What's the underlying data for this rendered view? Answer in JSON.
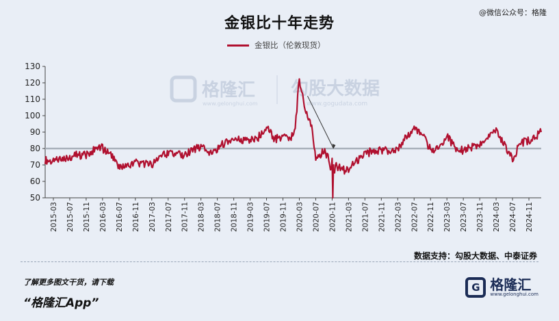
{
  "header": {
    "title": "金银比十年走势",
    "watermark": "@微信公众号：格隆"
  },
  "footer": {
    "source": "数据支持：勾股大数据、中泰证券",
    "promo_line": "了解更多图文干货，请下载",
    "promo_app": "“格隆汇App”",
    "logo_text": "格隆汇",
    "logo_mark": "G",
    "logo_sub": "www.gelonghui.com"
  },
  "watermarks": {
    "brand": "格隆汇",
    "brand_url": "www.gelonghui.com",
    "data_brand": "勾股大数据",
    "data_url": "www.gogudata.com"
  },
  "colors": {
    "series": "#b0102f",
    "reference_line": "#a9b1bb",
    "background": "#e9eef6"
  },
  "chart_data": {
    "type": "line",
    "title": "金银比十年走势",
    "ylim": [
      50,
      130
    ],
    "yticks": [
      50,
      60,
      70,
      80,
      90,
      100,
      110,
      120,
      130
    ],
    "xticks": [
      "2015-03",
      "2015-07",
      "2015-11",
      "2016-03",
      "2016-07",
      "2016-11",
      "2017-03",
      "2017-07",
      "2017-11",
      "2018-03",
      "2018-07",
      "2018-11",
      "2019-03",
      "2019-07",
      "2019-11",
      "2020-03",
      "2020-07",
      "2020-11",
      "2021-03",
      "2021-07",
      "2021-11",
      "2022-03",
      "2022-07",
      "2022-11",
      "2023-03",
      "2023-07",
      "2023-11",
      "2024-03",
      "2024-07",
      "2024-11"
    ],
    "grid": false,
    "legend_position": "top-center",
    "reference_line": 80,
    "annotation": "arrow pointing from the 2020-03 peak down toward 2020-11",
    "series": [
      {
        "name": "金银比（伦敦现货）",
        "x": [
          "2015-01",
          "2015-03",
          "2015-05",
          "2015-07",
          "2015-09",
          "2015-11",
          "2016-01",
          "2016-02",
          "2016-03",
          "2016-05",
          "2016-07",
          "2016-09",
          "2016-11",
          "2017-01",
          "2017-03",
          "2017-05",
          "2017-07",
          "2017-09",
          "2017-11",
          "2018-01",
          "2018-03",
          "2018-05",
          "2018-07",
          "2018-09",
          "2018-11",
          "2019-01",
          "2019-03",
          "2019-05",
          "2019-07",
          "2019-09",
          "2019-11",
          "2020-01",
          "2020-02",
          "2020-03",
          "2020-04",
          "2020-05",
          "2020-06",
          "2020-07",
          "2020-08",
          "2020-09",
          "2020-10",
          "2020-11",
          "2020-12",
          "2021-01",
          "2021-02",
          "2021-03",
          "2021-05",
          "2021-07",
          "2021-09",
          "2021-11",
          "2022-01",
          "2022-03",
          "2022-05",
          "2022-07",
          "2022-09",
          "2022-11",
          "2023-01",
          "2023-03",
          "2023-05",
          "2023-07",
          "2023-09",
          "2023-11",
          "2024-01",
          "2024-03",
          "2024-05",
          "2024-07",
          "2024-09",
          "2024-11",
          "2025-01",
          "2025-02"
        ],
        "values": [
          73,
          72,
          74,
          75,
          76,
          76,
          79,
          82,
          80,
          76,
          68,
          69,
          71,
          71,
          70,
          75,
          77,
          76,
          76,
          79,
          81,
          78,
          80,
          84,
          86,
          85,
          85,
          87,
          93,
          86,
          86,
          87,
          92,
          123,
          108,
          100,
          93,
          72,
          76,
          78,
          76,
          65,
          69,
          68,
          67,
          68,
          72,
          76,
          79,
          79,
          79,
          80,
          87,
          92,
          89,
          79,
          80,
          88,
          80,
          79,
          81,
          82,
          87,
          91,
          82,
          74,
          83,
          85,
          88,
          90
        ]
      }
    ]
  }
}
